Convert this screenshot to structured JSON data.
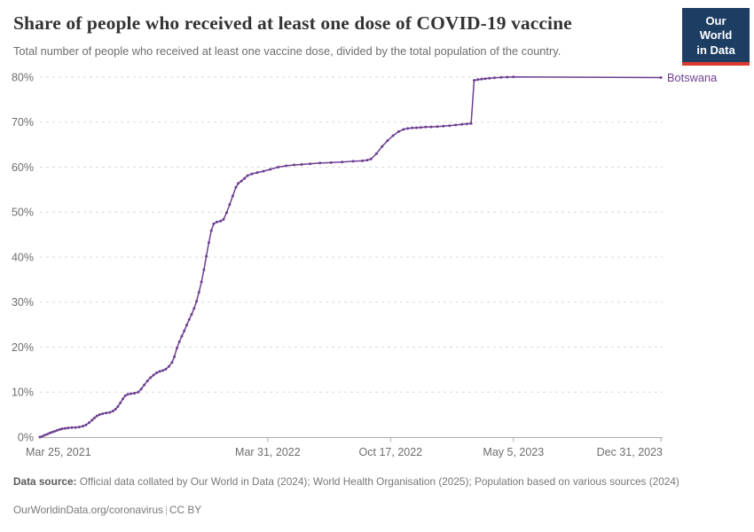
{
  "header": {
    "title": "Share of people who received at least one dose of COVID-19 vaccine",
    "subtitle": "Total number of people who received at least one vaccine dose, divided by the total population of the country.",
    "logo": {
      "line1": "Our World",
      "line2": "in Data",
      "bg_color": "#1d3d63",
      "accent_color": "#dc3a2f"
    }
  },
  "footer": {
    "source_label": "Data source:",
    "source_text": "Official data collated by Our World in Data (2024); World Health Organisation (2025); Population based on various sources (2024)",
    "link": "OurWorldinData.org/coronavirus",
    "separator": "|",
    "license": "CC BY"
  },
  "chart_data": {
    "type": "line",
    "title": "Share of people who received at least one dose of COVID-19 vaccine",
    "subtitle": "Total number of people who received at least one vaccine dose, divided by the total population of the country.",
    "grid": "horizontal-dashed",
    "legend": "end-of-line-label",
    "x_domain": [
      "2021-03-25",
      "2023-12-31"
    ],
    "ylim": [
      0,
      80
    ],
    "colors": {
      "grid": "#d9d9d9",
      "axis": "#adadad",
      "tick_text": "#6e6e6e"
    },
    "yticks": [
      {
        "v": 0,
        "label": "0%"
      },
      {
        "v": 10,
        "label": "10%"
      },
      {
        "v": 20,
        "label": "20%"
      },
      {
        "v": 30,
        "label": "30%"
      },
      {
        "v": 40,
        "label": "40%"
      },
      {
        "v": 50,
        "label": "50%"
      },
      {
        "v": 60,
        "label": "60%"
      },
      {
        "v": 70,
        "label": "70%"
      },
      {
        "v": 80,
        "label": "80%"
      }
    ],
    "xticks": [
      {
        "date": "2021-03-25",
        "label": "Mar 25, 2021",
        "anchor": "start",
        "dx": -16,
        "tick": false
      },
      {
        "date": "2022-03-31",
        "label": "Mar 31, 2022",
        "anchor": "middle",
        "dx": 0,
        "tick": true
      },
      {
        "date": "2022-10-17",
        "label": "Oct 17, 2022",
        "anchor": "middle",
        "dx": 0,
        "tick": true
      },
      {
        "date": "2023-05-05",
        "label": "May 5, 2023",
        "anchor": "middle",
        "dx": 0,
        "tick": true
      },
      {
        "date": "2023-12-31",
        "label": "Dec 31, 2023",
        "anchor": "end",
        "dx": 2,
        "tick": true
      }
    ],
    "series": [
      {
        "name": "Botswana",
        "color": "#6d3e91",
        "points": [
          [
            "2021-03-25",
            0.0
          ],
          [
            "2021-03-29",
            0.2
          ],
          [
            "2021-04-02",
            0.45
          ],
          [
            "2021-04-06",
            0.65
          ],
          [
            "2021-04-10",
            0.9
          ],
          [
            "2021-04-14",
            1.1
          ],
          [
            "2021-04-18",
            1.3
          ],
          [
            "2021-04-22",
            1.5
          ],
          [
            "2021-04-26",
            1.7
          ],
          [
            "2021-04-30",
            1.85
          ],
          [
            "2021-05-05",
            1.95
          ],
          [
            "2021-05-10",
            2.05
          ],
          [
            "2021-05-16",
            2.1
          ],
          [
            "2021-05-22",
            2.15
          ],
          [
            "2021-05-28",
            2.25
          ],
          [
            "2021-06-03",
            2.45
          ],
          [
            "2021-06-08",
            2.7
          ],
          [
            "2021-06-13",
            3.2
          ],
          [
            "2021-06-18",
            3.8
          ],
          [
            "2021-06-22",
            4.3
          ],
          [
            "2021-06-26",
            4.7
          ],
          [
            "2021-06-30",
            5.0
          ],
          [
            "2021-07-05",
            5.2
          ],
          [
            "2021-07-11",
            5.35
          ],
          [
            "2021-07-17",
            5.5
          ],
          [
            "2021-07-22",
            5.8
          ],
          [
            "2021-07-26",
            6.2
          ],
          [
            "2021-07-30",
            6.8
          ],
          [
            "2021-08-03",
            7.6
          ],
          [
            "2021-08-07",
            8.5
          ],
          [
            "2021-08-11",
            9.2
          ],
          [
            "2021-08-15",
            9.5
          ],
          [
            "2021-08-20",
            9.65
          ],
          [
            "2021-08-26",
            9.75
          ],
          [
            "2021-09-01",
            10.0
          ],
          [
            "2021-09-06",
            10.7
          ],
          [
            "2021-09-11",
            11.6
          ],
          [
            "2021-09-16",
            12.5
          ],
          [
            "2021-09-21",
            13.2
          ],
          [
            "2021-09-26",
            13.8
          ],
          [
            "2021-10-01",
            14.3
          ],
          [
            "2021-10-06",
            14.6
          ],
          [
            "2021-10-11",
            14.8
          ],
          [
            "2021-10-16",
            15.1
          ],
          [
            "2021-10-21",
            15.7
          ],
          [
            "2021-10-26",
            16.6
          ],
          [
            "2021-10-30",
            17.9
          ],
          [
            "2021-11-03",
            19.8
          ],
          [
            "2021-11-07",
            21.2
          ],
          [
            "2021-11-11",
            22.4
          ],
          [
            "2021-11-15",
            23.6
          ],
          [
            "2021-11-19",
            24.9
          ],
          [
            "2021-11-23",
            26.1
          ],
          [
            "2021-11-27",
            27.3
          ],
          [
            "2021-12-01",
            28.6
          ],
          [
            "2021-12-05",
            30.2
          ],
          [
            "2021-12-09",
            32.2
          ],
          [
            "2021-12-13",
            34.5
          ],
          [
            "2021-12-17",
            37.2
          ],
          [
            "2021-12-21",
            40.2
          ],
          [
            "2021-12-25",
            43.2
          ],
          [
            "2021-12-29",
            45.9
          ],
          [
            "2022-01-02",
            47.4
          ],
          [
            "2022-01-07",
            47.8
          ],
          [
            "2022-01-13",
            48.0
          ],
          [
            "2022-01-18",
            48.4
          ],
          [
            "2022-01-23",
            49.9
          ],
          [
            "2022-01-28",
            51.7
          ],
          [
            "2022-02-02",
            53.6
          ],
          [
            "2022-02-07",
            55.5
          ],
          [
            "2022-02-11",
            56.4
          ],
          [
            "2022-02-16",
            56.9
          ],
          [
            "2022-02-21",
            57.5
          ],
          [
            "2022-02-26",
            58.1
          ],
          [
            "2022-03-05",
            58.5
          ],
          [
            "2022-03-14",
            58.8
          ],
          [
            "2022-03-24",
            59.1
          ],
          [
            "2022-04-04",
            59.5
          ],
          [
            "2022-04-17",
            60.0
          ],
          [
            "2022-04-30",
            60.3
          ],
          [
            "2022-05-13",
            60.5
          ],
          [
            "2022-05-25",
            60.6
          ],
          [
            "2022-06-08",
            60.75
          ],
          [
            "2022-06-24",
            60.9
          ],
          [
            "2022-07-12",
            61.0
          ],
          [
            "2022-07-30",
            61.15
          ],
          [
            "2022-08-17",
            61.3
          ],
          [
            "2022-09-01",
            61.4
          ],
          [
            "2022-09-09",
            61.55
          ],
          [
            "2022-09-15",
            61.8
          ],
          [
            "2022-09-24",
            63.0
          ],
          [
            "2022-10-03",
            64.6
          ],
          [
            "2022-10-12",
            65.9
          ],
          [
            "2022-10-21",
            67.0
          ],
          [
            "2022-10-30",
            67.9
          ],
          [
            "2022-11-07",
            68.4
          ],
          [
            "2022-11-14",
            68.6
          ],
          [
            "2022-11-21",
            68.7
          ],
          [
            "2022-11-28",
            68.75
          ],
          [
            "2022-12-05",
            68.8
          ],
          [
            "2022-12-13",
            68.9
          ],
          [
            "2022-12-22",
            68.95
          ],
          [
            "2023-01-01",
            69.0
          ],
          [
            "2023-01-11",
            69.1
          ],
          [
            "2023-01-21",
            69.2
          ],
          [
            "2023-01-31",
            69.35
          ],
          [
            "2023-02-10",
            69.5
          ],
          [
            "2023-02-18",
            69.6
          ],
          [
            "2023-02-25",
            69.7
          ],
          [
            "2023-03-02",
            79.3
          ],
          [
            "2023-03-08",
            79.45
          ],
          [
            "2023-03-14",
            79.55
          ],
          [
            "2023-03-20",
            79.65
          ],
          [
            "2023-03-27",
            79.75
          ],
          [
            "2023-04-04",
            79.85
          ],
          [
            "2023-04-15",
            79.95
          ],
          [
            "2023-04-25",
            80.0
          ],
          [
            "2023-05-05",
            80.05
          ],
          [
            "2023-12-31",
            79.9
          ]
        ]
      }
    ]
  }
}
